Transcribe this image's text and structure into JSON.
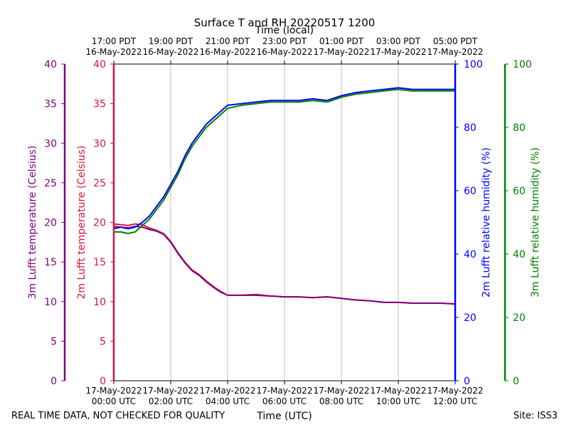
{
  "chart_data": {
    "type": "line",
    "title": "Surface T and RH 20220517 1200",
    "top_axis_label": "Time (local)",
    "xlabel": "Time (UTC)",
    "x_unit": "hours since 17-May-2022 00:00 UTC",
    "xlim": [
      0,
      12
    ],
    "x_ticks": [
      {
        "x": 0,
        "utc": [
          "17-May-2022",
          "00:00 UTC"
        ],
        "local": [
          "17:00 PDT",
          "16-May-2022"
        ]
      },
      {
        "x": 2,
        "utc": [
          "17-May-2022",
          "02:00 UTC"
        ],
        "local": [
          "19:00 PDT",
          "16-May-2022"
        ]
      },
      {
        "x": 4,
        "utc": [
          "17-May-2022",
          "04:00 UTC"
        ],
        "local": [
          "21:00 PDT",
          "16-May-2022"
        ]
      },
      {
        "x": 6,
        "utc": [
          "17-May-2022",
          "06:00 UTC"
        ],
        "local": [
          "23:00 PDT",
          "16-May-2022"
        ]
      },
      {
        "x": 8,
        "utc": [
          "17-May-2022",
          "08:00 UTC"
        ],
        "local": [
          "01:00 PDT",
          "17-May-2022"
        ]
      },
      {
        "x": 10,
        "utc": [
          "17-May-2022",
          "10:00 UTC"
        ],
        "local": [
          "03:00 PDT",
          "17-May-2022"
        ]
      },
      {
        "x": 12,
        "utc": [
          "17-May-2022",
          "12:00 UTC"
        ],
        "local": [
          "05:00 PDT",
          "17-May-2022"
        ]
      }
    ],
    "axes": [
      {
        "id": "t3",
        "label": "3m Lufft temperature (Celsius)",
        "color": "#800080",
        "ylim": [
          0,
          40
        ],
        "ticks": [
          0,
          5,
          10,
          15,
          20,
          25,
          30,
          35,
          40
        ]
      },
      {
        "id": "t2",
        "label": "2m Lufft temperature (Celsius)",
        "color": "#dc143c",
        "ylim": [
          0,
          40
        ],
        "ticks": [
          0,
          5,
          10,
          15,
          20,
          25,
          30,
          35,
          40
        ]
      },
      {
        "id": "rh2",
        "label": "2m Lufft relative humidity (%)",
        "color": "#0000ff",
        "ylim": [
          0,
          100
        ],
        "ticks": [
          0,
          20,
          40,
          60,
          80,
          100
        ]
      },
      {
        "id": "rh3",
        "label": "3m Lufft relative humidity (%)",
        "color": "#008000",
        "ylim": [
          0,
          100
        ],
        "ticks": [
          0,
          20,
          40,
          60,
          80,
          100
        ]
      }
    ],
    "series": [
      {
        "name": "2m Lufft temperature (Celsius)",
        "axis": "t2",
        "color": "#dc143c",
        "x": [
          0,
          0.25,
          0.5,
          0.75,
          1,
          1.25,
          1.5,
          1.75,
          2,
          2.25,
          2.5,
          2.75,
          3,
          3.25,
          3.5,
          3.75,
          4,
          4.5,
          5,
          5.5,
          6,
          6.5,
          7,
          7.5,
          8,
          8.5,
          9,
          9.5,
          10,
          10.5,
          11,
          11.5,
          12
        ],
        "y": [
          19.8,
          19.7,
          19.6,
          19.8,
          19.7,
          19.3,
          19.0,
          18.6,
          17.6,
          16.2,
          15.0,
          14.0,
          13.4,
          12.6,
          11.9,
          11.3,
          10.8,
          10.8,
          10.9,
          10.7,
          10.6,
          10.6,
          10.5,
          10.6,
          10.4,
          10.2,
          10.1,
          9.9,
          9.9,
          9.8,
          9.8,
          9.8,
          9.7
        ]
      },
      {
        "name": "3m Lufft temperature (Celsius)",
        "axis": "t3",
        "color": "#800080",
        "x": [
          0,
          0.25,
          0.5,
          0.75,
          1,
          1.25,
          1.5,
          1.75,
          2,
          2.25,
          2.5,
          2.75,
          3,
          3.25,
          3.5,
          3.75,
          4,
          4.5,
          5,
          5.5,
          6,
          6.5,
          7,
          7.5,
          8,
          8.5,
          9,
          9.5,
          10,
          10.5,
          11,
          11.5,
          12
        ],
        "y": [
          19.5,
          19.4,
          19.3,
          19.5,
          19.4,
          19.1,
          18.9,
          18.5,
          17.5,
          16.1,
          14.9,
          13.9,
          13.3,
          12.5,
          11.8,
          11.2,
          10.8,
          10.8,
          10.8,
          10.7,
          10.6,
          10.6,
          10.5,
          10.6,
          10.4,
          10.2,
          10.1,
          9.9,
          9.9,
          9.8,
          9.8,
          9.8,
          9.7
        ]
      },
      {
        "name": "2m Lufft relative humidity (%)",
        "axis": "rh2",
        "color": "#0000ff",
        "x": [
          0,
          0.25,
          0.5,
          0.75,
          1,
          1.25,
          1.5,
          1.75,
          2,
          2.25,
          2.5,
          2.75,
          3,
          3.25,
          3.5,
          3.75,
          4,
          4.5,
          5,
          5.5,
          6,
          6.5,
          7,
          7.5,
          8,
          8.5,
          9,
          9.5,
          10,
          10.5,
          11,
          11.5,
          12
        ],
        "y": [
          48,
          48.5,
          48,
          48.5,
          50,
          52,
          55,
          58,
          62,
          66,
          71,
          75,
          78,
          81,
          83,
          85,
          87,
          87.5,
          88,
          88.5,
          88.5,
          88.5,
          89,
          88.5,
          90,
          91,
          91.5,
          92,
          92.5,
          92,
          92,
          92,
          92
        ]
      },
      {
        "name": "3m Lufft relative humidity (%)",
        "axis": "rh3",
        "color": "#008000",
        "x": [
          0,
          0.25,
          0.5,
          0.75,
          1,
          1.25,
          1.5,
          1.75,
          2,
          2.25,
          2.5,
          2.75,
          3,
          3.25,
          3.5,
          3.75,
          4,
          4.5,
          5,
          5.5,
          6,
          6.5,
          7,
          7.5,
          8,
          8.5,
          9,
          9.5,
          10,
          10.5,
          11,
          11.5,
          12
        ],
        "y": [
          47,
          47,
          46.5,
          47,
          49,
          51,
          54,
          57,
          61,
          65,
          70,
          74,
          77,
          80,
          82,
          84,
          86,
          87,
          87.5,
          88,
          88,
          88,
          88.5,
          88,
          89.5,
          90.5,
          91,
          91.5,
          92,
          91.5,
          91.5,
          91.5,
          91.5
        ]
      }
    ],
    "grid": {
      "x": true,
      "y": false
    }
  },
  "footer": {
    "left": "REAL TIME DATA, NOT CHECKED FOR QUALITY",
    "right": "Site: ISS3"
  }
}
